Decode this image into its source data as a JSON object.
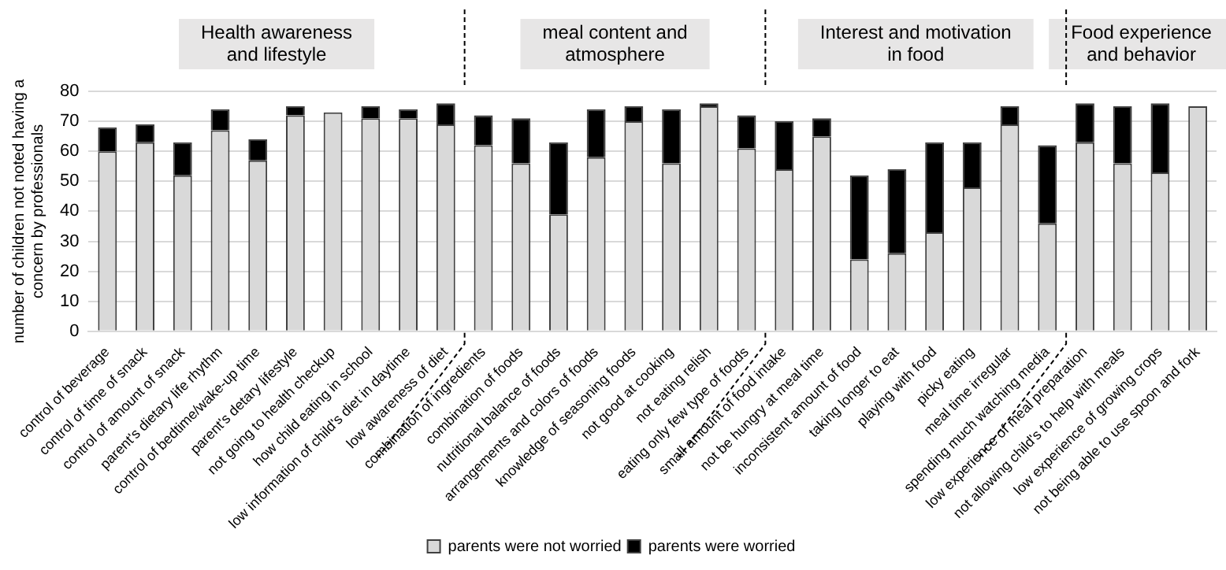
{
  "chart_data": {
    "type": "bar",
    "stacked": true,
    "ylabel": "number of children not noted having a concern by professionals",
    "categories": [
      "control of beverage",
      "control of time of snack",
      "control of amount of snack",
      "parent's dietary life rhythm",
      "control of bedtime/wake-up time",
      "parent's detary lifestyle",
      "not going to health checkup",
      "how child eating in school",
      "low information of child's diet in daytime",
      "low awareness of diet",
      "combination of ingredients",
      "combination of foods",
      "nutritional balance of foods",
      "arrangements and colors of foods",
      "knowledge of seasoning foods",
      "not good at cooking",
      "not eating relish",
      "eating only few type of foods",
      "small amount of food intake",
      "not be hungry at meal time",
      "inconsistent amount of food",
      "taking longer to eat",
      "playing with food",
      "picky eating",
      "meal time irregular",
      "spending much watching media",
      "low experience of meal preparation",
      "not allowing child's to help with meals",
      "low experience of growing crops",
      "not being able to use spoon and fork"
    ],
    "series": [
      {
        "name": "parents were not worried",
        "color": "#d9d9d9",
        "values": [
          60,
          63,
          52,
          67,
          57,
          72,
          73,
          71,
          71,
          69,
          62,
          56,
          39,
          58,
          70,
          56,
          75,
          61,
          54,
          65,
          24,
          26,
          33,
          48,
          69,
          36,
          63,
          56,
          53,
          75
        ]
      },
      {
        "name": "parents were worried",
        "color": "#000000",
        "values": [
          8,
          6,
          11,
          7,
          7,
          3,
          0,
          4,
          3,
          7,
          10,
          15,
          24,
          16,
          5,
          18,
          1,
          11,
          16,
          6,
          28,
          28,
          30,
          15,
          6,
          26,
          13,
          19,
          23,
          0
        ]
      }
    ],
    "ylim": [
      0,
      80
    ],
    "yticks": [
      0,
      10,
      20,
      30,
      40,
      50,
      60,
      70,
      80
    ],
    "grid": "y",
    "legend": "bottom",
    "annotations": [
      "Health awareness and lifestyle",
      "meal content and atmosphere",
      "Interest and motivation in food",
      "Food experience and behavior"
    ]
  }
}
